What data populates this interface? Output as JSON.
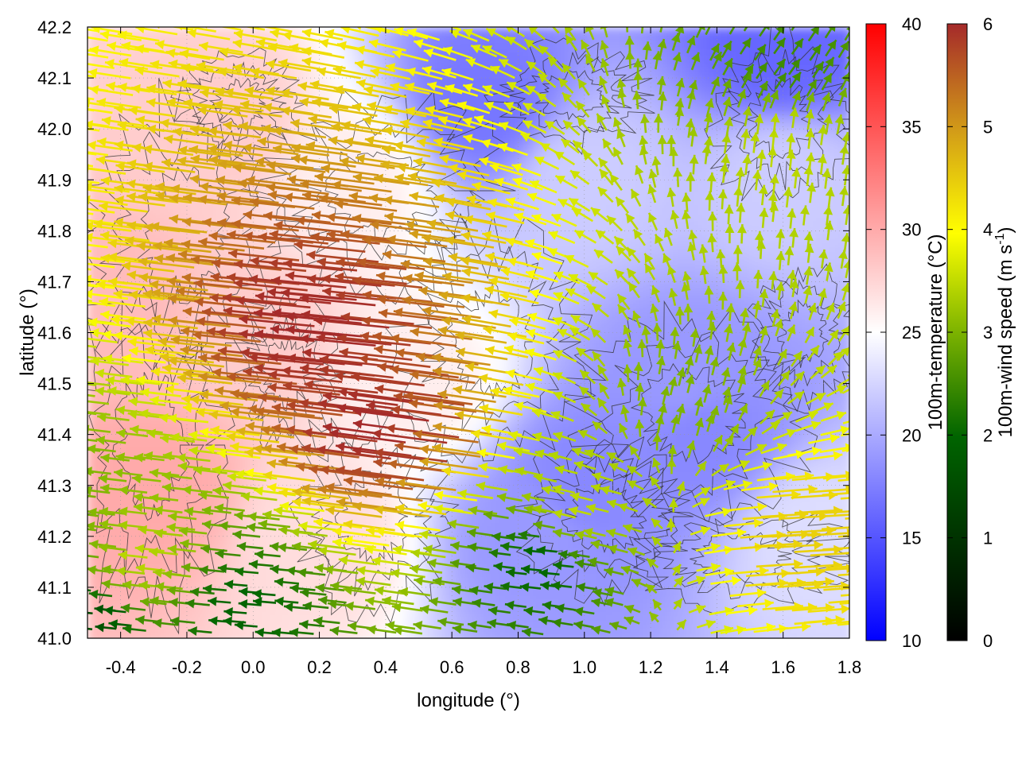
{
  "chart_data": {
    "type": "heatmap",
    "subtype": "vector-field-over-temperature-map-with-contours",
    "xlabel": "longitude (°)",
    "ylabel": "latitude (°)",
    "xlim": [
      -0.5,
      1.8
    ],
    "ylim": [
      41.0,
      42.2
    ],
    "xticks": [
      -0.4,
      -0.2,
      0.0,
      0.2,
      0.4,
      0.6,
      0.8,
      1.0,
      1.2,
      1.4,
      1.6,
      1.8
    ],
    "xtick_labels": [
      "-0.4",
      "-0.2",
      "0.0",
      "0.2",
      "0.4",
      "0.6",
      "0.8",
      "1.0",
      "1.2",
      "1.4",
      "1.6",
      "1.8"
    ],
    "yticks": [
      41.0,
      41.1,
      41.2,
      41.3,
      41.4,
      41.5,
      41.6,
      41.7,
      41.8,
      41.9,
      42.0,
      42.1,
      42.2
    ],
    "ytick_labels": [
      "41.0",
      "41.1",
      "41.2",
      "41.3",
      "41.4",
      "41.5",
      "41.6",
      "41.7",
      "41.8",
      "41.9",
      "42.0",
      "42.1",
      "42.2"
    ],
    "grid": "dotted",
    "temperature_colorbar": {
      "label": "100m-temperature (°C)",
      "range": [
        10,
        40
      ],
      "ticks": [
        10,
        15,
        20,
        25,
        30,
        35,
        40
      ],
      "tick_labels": [
        "10",
        "15",
        "20",
        "25",
        "30",
        "35",
        "40"
      ],
      "colors": [
        "#0000ff",
        "#ffffff",
        "#ff0000"
      ]
    },
    "wind_colorbar": {
      "label": "100m-wind speed (m s",
      "label_sup": "-1",
      "label_end": ")",
      "range": [
        0,
        6
      ],
      "ticks": [
        0,
        1,
        2,
        3,
        4,
        5,
        6
      ],
      "tick_labels": [
        "0",
        "1",
        "2",
        "3",
        "4",
        "5",
        "6"
      ],
      "colors": [
        "#000000",
        "#006400",
        "#7cb300",
        "#ffff00",
        "#d4a017",
        "#b5651d",
        "#a52a2a"
      ]
    },
    "temperature_field": {
      "description_points": [
        {
          "lon": -0.4,
          "lat": 41.65,
          "t": 29
        },
        {
          "lon": -0.3,
          "lat": 41.3,
          "t": 30
        },
        {
          "lon": -0.1,
          "lat": 42.0,
          "t": 28
        },
        {
          "lon": 0.0,
          "lat": 41.6,
          "t": 28
        },
        {
          "lon": 0.2,
          "lat": 41.2,
          "t": 27
        },
        {
          "lon": 0.3,
          "lat": 41.9,
          "t": 26
        },
        {
          "lon": 0.5,
          "lat": 41.5,
          "t": 26
        },
        {
          "lon": 0.85,
          "lat": 41.2,
          "t": 19
        },
        {
          "lon": 1.0,
          "lat": 41.3,
          "t": 18
        },
        {
          "lon": 1.3,
          "lat": 41.5,
          "t": 19
        },
        {
          "lon": 1.35,
          "lat": 41.4,
          "t": 18
        },
        {
          "lon": 0.7,
          "lat": 42.05,
          "t": 17
        },
        {
          "lon": 1.6,
          "lat": 42.15,
          "t": 16
        },
        {
          "lon": 1.0,
          "lat": 41.9,
          "t": 22
        },
        {
          "lon": 1.6,
          "lat": 41.9,
          "t": 22
        },
        {
          "lon": 1.7,
          "lat": 41.2,
          "t": 23
        }
      ]
    },
    "wind_samples": [
      {
        "lon": -0.45,
        "lat": 41.05,
        "u": -1.0,
        "v": 0.1,
        "speed": 1.5
      },
      {
        "lon": -0.4,
        "lat": 41.12,
        "u": -1.5,
        "v": 0.2,
        "speed": 3.0
      },
      {
        "lon": -0.3,
        "lat": 41.15,
        "u": -1.8,
        "v": 0.2,
        "speed": 3.5
      },
      {
        "lon": 0.0,
        "lat": 41.05,
        "u": -1.2,
        "v": 0.1,
        "speed": 2.0
      },
      {
        "lon": 0.3,
        "lat": 41.6,
        "u": -6.0,
        "v": 0.6,
        "speed": 6.0
      },
      {
        "lon": 0.5,
        "lat": 41.4,
        "u": -6.0,
        "v": 0.8,
        "speed": 6.0
      },
      {
        "lon": 0.9,
        "lat": 41.15,
        "u": -1.0,
        "v": 0.1,
        "speed": 2.0
      },
      {
        "lon": 1.0,
        "lat": 41.25,
        "u": -1.2,
        "v": 0.3,
        "speed": 3.5
      },
      {
        "lon": 1.3,
        "lat": 41.45,
        "u": 0.2,
        "v": 0.8,
        "speed": 3.0
      },
      {
        "lon": 1.6,
        "lat": 41.2,
        "u": 3.5,
        "v": 0.2,
        "speed": 4.5
      },
      {
        "lon": 1.6,
        "lat": 41.95,
        "u": 0.1,
        "v": 1.0,
        "speed": 3.5
      },
      {
        "lon": 1.6,
        "lat": 42.12,
        "u": 0.5,
        "v": 0.7,
        "speed": 2.5
      }
    ]
  }
}
